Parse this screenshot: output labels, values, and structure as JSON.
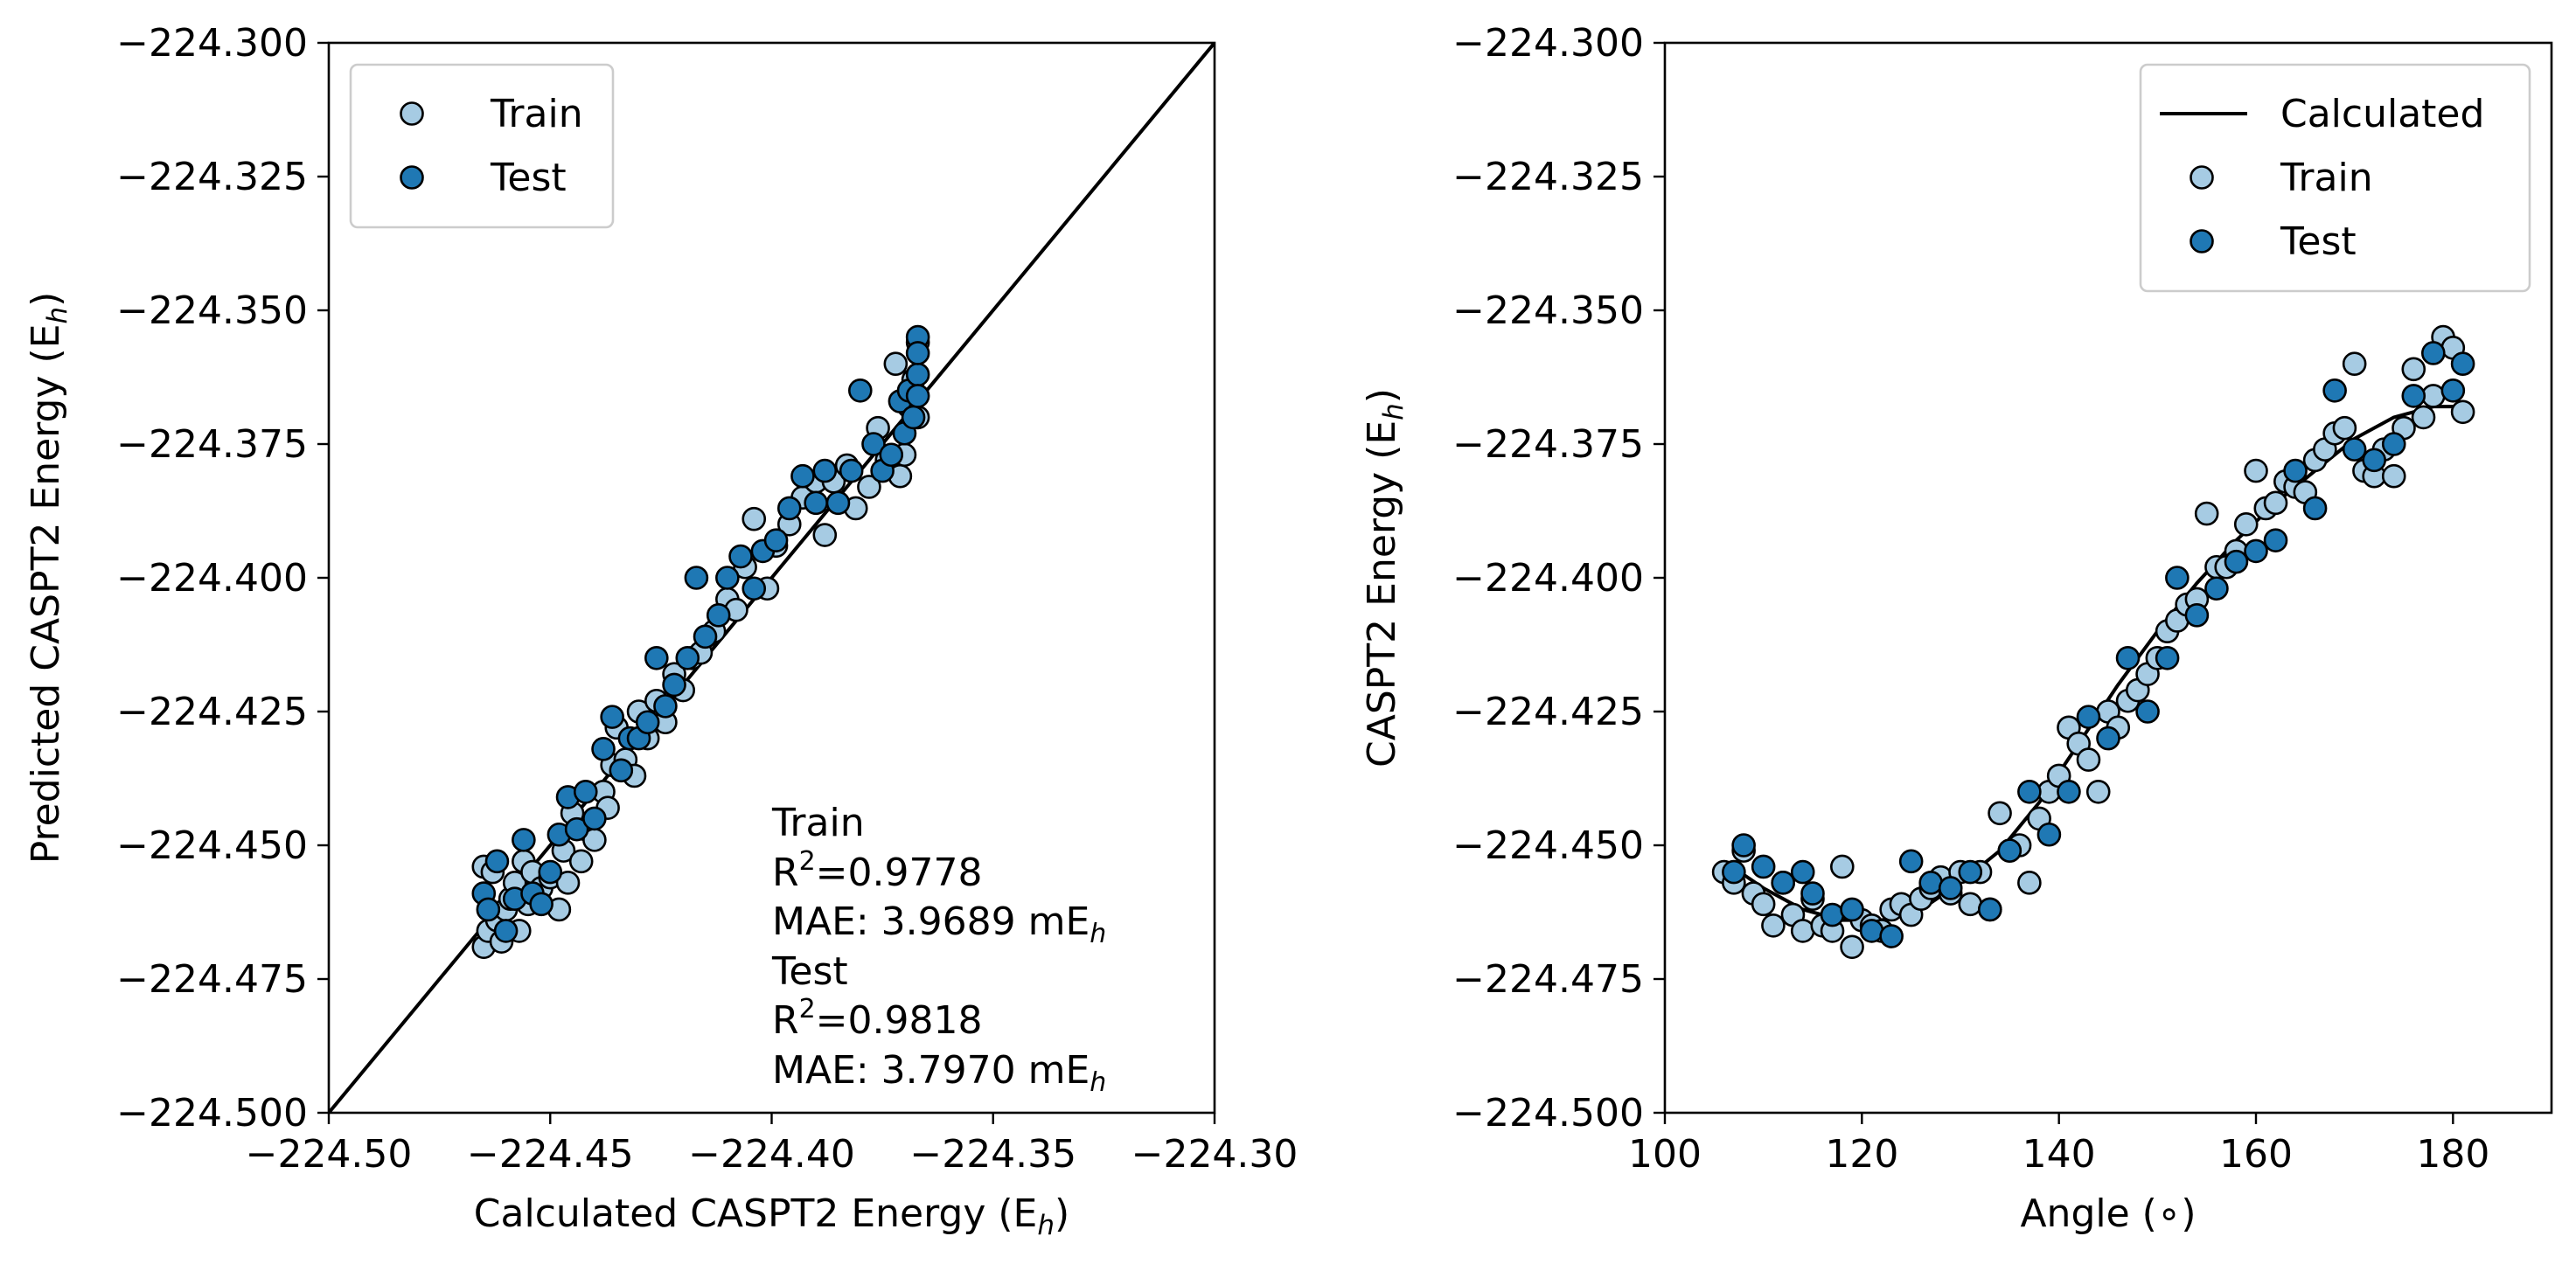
{
  "colors": {
    "train": "#a6cbe3",
    "test": "#1f78b4",
    "edge": "#000000",
    "line": "#000000"
  },
  "chart_data": [
    {
      "type": "scatter",
      "xlabel": "Calculated CASPT2 Energy (E",
      "xlabel_sub": "h",
      "xlabel_end": ")",
      "ylabel": "Predicted CASPT2 Energy (E",
      "ylabel_sub": "h",
      "ylabel_end": ")",
      "xlim": [
        -224.5,
        -224.3
      ],
      "ylim": [
        -224.5,
        -224.3
      ],
      "xticks": [
        "−224.50",
        "−224.45",
        "−224.40",
        "−224.35",
        "−224.30"
      ],
      "xtick_values": [
        -224.5,
        -224.45,
        -224.4,
        -224.35,
        -224.3
      ],
      "yticks": [
        "−224.300",
        "−224.325",
        "−224.350",
        "−224.375",
        "−224.400",
        "−224.425",
        "−224.450",
        "−224.475",
        "−224.500"
      ],
      "ytick_values": [
        -224.3,
        -224.325,
        -224.35,
        -224.375,
        -224.4,
        -224.425,
        -224.45,
        -224.475,
        -224.5
      ],
      "grid": false,
      "legend_position": "upper-left",
      "legend": [
        {
          "name": "Train",
          "marker": "train"
        },
        {
          "name": "Test",
          "marker": "test"
        }
      ],
      "reference_line": {
        "x": [
          -224.5,
          -224.3
        ],
        "y": [
          -224.5,
          -224.3
        ]
      },
      "annotation": {
        "train_heading": "Train",
        "train_r2": "=0.9778",
        "train_mae": "MAE: 3.9689 mE",
        "test_heading": "Test",
        "test_r2": "=0.9818",
        "test_mae": "MAE: 3.7970 mE",
        "r_letter": "R",
        "sup": "2",
        "sub": "h"
      },
      "series": [
        {
          "name": "Train",
          "x": [
            -224.465,
            -224.465,
            -224.464,
            -224.463,
            -224.462,
            -224.461,
            -224.46,
            -224.459,
            -224.458,
            -224.457,
            -224.456,
            -224.455,
            -224.454,
            -224.452,
            -224.45,
            -224.448,
            -224.447,
            -224.446,
            -224.445,
            -224.443,
            -224.442,
            -224.44,
            -224.438,
            -224.437,
            -224.436,
            -224.435,
            -224.433,
            -224.431,
            -224.43,
            -224.428,
            -224.426,
            -224.424,
            -224.422,
            -224.42,
            -224.418,
            -224.416,
            -224.413,
            -224.41,
            -224.408,
            -224.406,
            -224.404,
            -224.401,
            -224.399,
            -224.396,
            -224.393,
            -224.39,
            -224.388,
            -224.386,
            -224.383,
            -224.381,
            -224.378,
            -224.376,
            -224.374,
            -224.372,
            -224.371,
            -224.37,
            -224.369,
            -224.368,
            -224.367,
            -224.367
          ],
          "y": [
            -224.454,
            -224.469,
            -224.466,
            -224.455,
            -224.464,
            -224.468,
            -224.462,
            -224.46,
            -224.457,
            -224.466,
            -224.453,
            -224.461,
            -224.455,
            -224.458,
            -224.456,
            -224.462,
            -224.451,
            -224.457,
            -224.444,
            -224.453,
            -224.447,
            -224.449,
            -224.44,
            -224.443,
            -224.435,
            -224.428,
            -224.434,
            -224.437,
            -224.425,
            -224.43,
            -224.423,
            -224.427,
            -224.418,
            -224.421,
            -224.415,
            -224.414,
            -224.41,
            -224.404,
            -224.406,
            -224.398,
            -224.389,
            -224.402,
            -224.394,
            -224.39,
            -224.385,
            -224.382,
            -224.392,
            -224.382,
            -224.379,
            -224.387,
            -224.383,
            -224.372,
            -224.378,
            -224.36,
            -224.381,
            -224.377,
            -224.368,
            -224.363,
            -224.356,
            -224.37
          ]
        },
        {
          "name": "Test",
          "x": [
            -224.465,
            -224.464,
            -224.462,
            -224.46,
            -224.458,
            -224.456,
            -224.454,
            -224.452,
            -224.45,
            -224.448,
            -224.446,
            -224.444,
            -224.442,
            -224.44,
            -224.438,
            -224.436,
            -224.434,
            -224.432,
            -224.43,
            -224.428,
            -224.426,
            -224.424,
            -224.422,
            -224.419,
            -224.417,
            -224.415,
            -224.412,
            -224.41,
            -224.407,
            -224.404,
            -224.402,
            -224.399,
            -224.396,
            -224.393,
            -224.39,
            -224.388,
            -224.385,
            -224.382,
            -224.38,
            -224.377,
            -224.375,
            -224.373,
            -224.371,
            -224.37,
            -224.369,
            -224.368,
            -224.367,
            -224.367,
            -224.367,
            -224.367
          ],
          "y": [
            -224.459,
            -224.462,
            -224.453,
            -224.466,
            -224.46,
            -224.449,
            -224.459,
            -224.461,
            -224.455,
            -224.448,
            -224.441,
            -224.447,
            -224.44,
            -224.445,
            -224.432,
            -224.426,
            -224.436,
            -224.43,
            -224.43,
            -224.427,
            -224.415,
            -224.424,
            -224.42,
            -224.415,
            -224.4,
            -224.411,
            -224.407,
            -224.4,
            -224.396,
            -224.402,
            -224.395,
            -224.393,
            -224.387,
            -224.381,
            -224.386,
            -224.38,
            -224.386,
            -224.38,
            -224.365,
            -224.375,
            -224.38,
            -224.377,
            -224.367,
            -224.373,
            -224.365,
            -224.37,
            -224.355,
            -224.362,
            -224.358,
            -224.366
          ]
        }
      ]
    },
    {
      "type": "scatter",
      "xlabel": "Angle (∘)",
      "ylabel": "CASPT2 Energy (E",
      "ylabel_sub": "h",
      "ylabel_end": ")",
      "xlim": [
        100,
        190
      ],
      "ylim": [
        -224.5,
        -224.3
      ],
      "xticks": [
        "100",
        "120",
        "140",
        "160",
        "180"
      ],
      "xtick_values": [
        100,
        120,
        140,
        160,
        180
      ],
      "yticks": [
        "−224.300",
        "−224.325",
        "−224.350",
        "−224.375",
        "−224.400",
        "−224.425",
        "−224.450",
        "−224.475",
        "−224.500"
      ],
      "ytick_values": [
        -224.3,
        -224.325,
        -224.35,
        -224.375,
        -224.4,
        -224.425,
        -224.45,
        -224.475,
        -224.5
      ],
      "grid": false,
      "legend_position": "upper-right",
      "legend": [
        {
          "name": "Calculated",
          "marker": "line"
        },
        {
          "name": "Train",
          "marker": "train"
        },
        {
          "name": "Test",
          "marker": "test"
        }
      ],
      "line_series": {
        "name": "Calculated",
        "x": [
          106,
          110,
          114,
          118,
          122,
          126,
          130,
          134,
          138,
          142,
          146,
          150,
          154,
          158,
          162,
          166,
          170,
          174,
          178,
          181
        ],
        "y": [
          -224.453,
          -224.458,
          -224.462,
          -224.464,
          -224.464,
          -224.462,
          -224.457,
          -224.451,
          -224.442,
          -224.431,
          -224.42,
          -224.41,
          -224.401,
          -224.393,
          -224.386,
          -224.38,
          -224.374,
          -224.37,
          -224.368,
          -224.368
        ]
      },
      "series": [
        {
          "name": "Train",
          "x": [
            106,
            107,
            108,
            109,
            110,
            111,
            112,
            113,
            114,
            115,
            116,
            117,
            118,
            119,
            120,
            121,
            122,
            123,
            124,
            125,
            126,
            127,
            128,
            129,
            130,
            131,
            132,
            133,
            134,
            135,
            136,
            137,
            138,
            139,
            140,
            141,
            142,
            143,
            144,
            145,
            146,
            147,
            148,
            149,
            150,
            151,
            152,
            153,
            154,
            155,
            156,
            157,
            158,
            159,
            160,
            161,
            162,
            163,
            164,
            165,
            166,
            167,
            168,
            169,
            170,
            171,
            172,
            173,
            174,
            175,
            176,
            177,
            178,
            179,
            180,
            181
          ],
          "y": [
            -224.455,
            -224.457,
            -224.451,
            -224.459,
            -224.461,
            -224.465,
            -224.457,
            -224.463,
            -224.466,
            -224.46,
            -224.465,
            -224.466,
            -224.454,
            -224.469,
            -224.464,
            -224.465,
            -224.466,
            -224.462,
            -224.461,
            -224.463,
            -224.46,
            -224.458,
            -224.456,
            -224.459,
            -224.455,
            -224.461,
            -224.455,
            -224.462,
            -224.444,
            -224.451,
            -224.45,
            -224.457,
            -224.445,
            -224.44,
            -224.437,
            -224.428,
            -224.431,
            -224.434,
            -224.44,
            -224.425,
            -224.428,
            -224.423,
            -224.421,
            -224.418,
            -224.415,
            -224.41,
            -224.408,
            -224.405,
            -224.404,
            -224.388,
            -224.398,
            -224.398,
            -224.395,
            -224.39,
            -224.38,
            -224.387,
            -224.386,
            -224.382,
            -224.383,
            -224.384,
            -224.378,
            -224.376,
            -224.373,
            -224.372,
            -224.36,
            -224.38,
            -224.381,
            -224.376,
            -224.381,
            -224.372,
            -224.361,
            -224.37,
            -224.366,
            -224.355,
            -224.357,
            -224.369
          ]
        },
        {
          "name": "Test",
          "x": [
            107,
            108,
            110,
            112,
            114,
            115,
            117,
            119,
            121,
            123,
            125,
            127,
            129,
            131,
            133,
            135,
            137,
            139,
            141,
            143,
            145,
            147,
            149,
            151,
            152,
            154,
            156,
            158,
            160,
            162,
            164,
            166,
            168,
            170,
            172,
            174,
            176,
            178,
            180,
            181
          ],
          "y": [
            -224.455,
            -224.45,
            -224.454,
            -224.457,
            -224.455,
            -224.459,
            -224.463,
            -224.462,
            -224.466,
            -224.467,
            -224.453,
            -224.457,
            -224.458,
            -224.455,
            -224.462,
            -224.451,
            -224.44,
            -224.448,
            -224.44,
            -224.426,
            -224.43,
            -224.415,
            -224.425,
            -224.415,
            -224.4,
            -224.407,
            -224.402,
            -224.397,
            -224.395,
            -224.393,
            -224.38,
            -224.387,
            -224.365,
            -224.376,
            -224.378,
            -224.375,
            -224.366,
            -224.358,
            -224.365,
            -224.36
          ]
        }
      ]
    }
  ]
}
